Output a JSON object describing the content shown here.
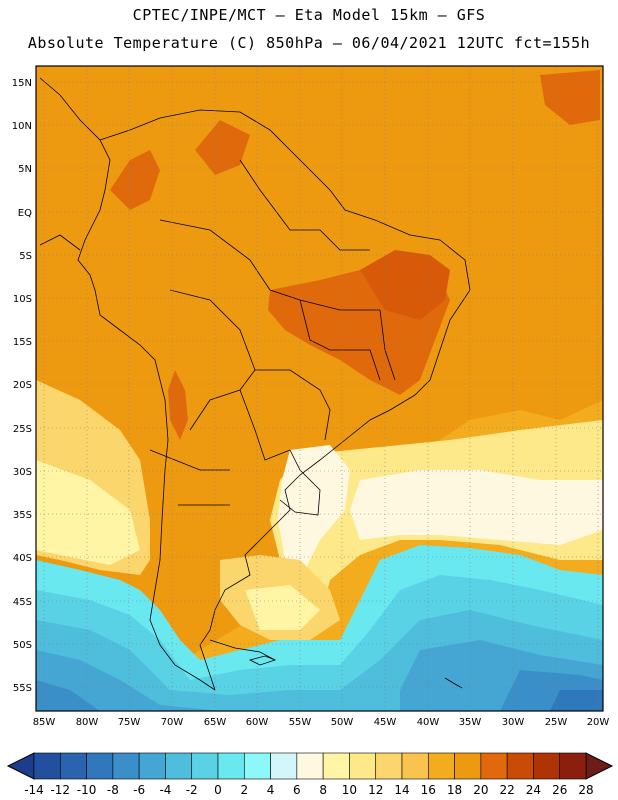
{
  "title": {
    "line1": "CPTEC/INPE/MCT –  Eta Model 15km – GFS",
    "line2": "Absolute Temperature (C) 850hPa – 06/04/2021 12UTC fct=155h"
  },
  "lat_labels": [
    "15N",
    "10N",
    "5N",
    "EQ",
    "5S",
    "10S",
    "15S",
    "20S",
    "25S",
    "30S",
    "35S",
    "40S",
    "45S",
    "50S",
    "55S"
  ],
  "lon_labels": [
    "85W",
    "80W",
    "75W",
    "70W",
    "65W",
    "60W",
    "55W",
    "50W",
    "45W",
    "40W",
    "35W",
    "30W",
    "25W",
    "20W"
  ],
  "colorbar": {
    "labels": [
      "-14",
      "-12",
      "-10",
      "-8",
      "-6",
      "-4",
      "-2",
      "0",
      "2",
      "4",
      "6",
      "8",
      "10",
      "12",
      "14",
      "16",
      "18",
      "20",
      "22",
      "24",
      "26",
      "28"
    ],
    "colors": [
      "#1e3c8c",
      "#23509e",
      "#2a64ae",
      "#2f78bc",
      "#3a8fc9",
      "#45a6d3",
      "#4fbddc",
      "#5ad2e6",
      "#6ae8f0",
      "#8cf8f8",
      "#d2f6fa",
      "#fff8e0",
      "#fff5a5",
      "#fde88a",
      "#fbd66c",
      "#f8c44e",
      "#f2ac1d",
      "#ee9a10",
      "#e06a0b",
      "#c84b08",
      "#ae3305",
      "#8b1e0c",
      "#6e1c18"
    ]
  },
  "icons": {
    "left_arrow": "colorbar-left-arrow-icon",
    "right_arrow": "colorbar-right-arrow-icon"
  }
}
